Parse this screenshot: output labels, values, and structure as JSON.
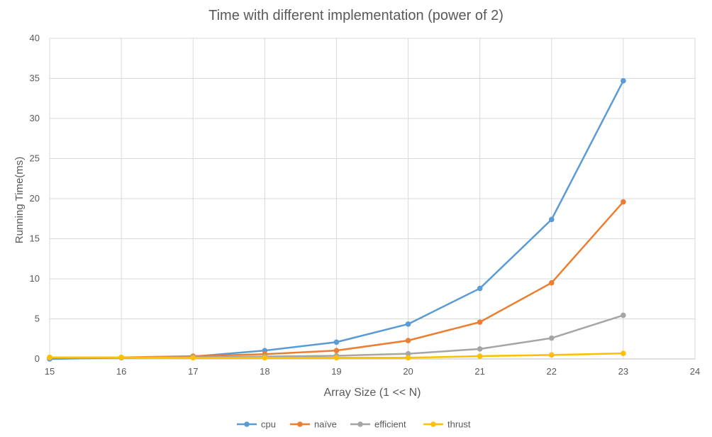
{
  "chart_data": {
    "type": "line",
    "title": "Time with different implementation (power of 2)",
    "xlabel": "Array Size (1 << N)",
    "ylabel": "Running Time(ms)",
    "x": [
      15,
      16,
      17,
      18,
      19,
      20,
      21,
      22,
      23
    ],
    "xlim": [
      15,
      24
    ],
    "xticks": [
      15,
      16,
      17,
      18,
      19,
      20,
      21,
      22,
      23,
      24
    ],
    "ylim": [
      0,
      40
    ],
    "yticks": [
      0,
      5,
      10,
      15,
      20,
      25,
      30,
      35,
      40
    ],
    "grid": true,
    "legend_position": "bottom",
    "series": [
      {
        "name": "cpu",
        "color": "#5b9bd5",
        "values": [
          0.0,
          0.15,
          0.3,
          1.05,
          2.1,
          4.35,
          8.8,
          17.4,
          34.7
        ]
      },
      {
        "name": "naïve",
        "color": "#ed7d31",
        "values": [
          0.2,
          0.2,
          0.35,
          0.6,
          1.05,
          2.3,
          4.6,
          9.5,
          19.6
        ]
      },
      {
        "name": "efficient",
        "color": "#a5a5a5",
        "values": [
          0.15,
          0.15,
          0.2,
          0.3,
          0.4,
          0.65,
          1.25,
          2.6,
          5.45
        ]
      },
      {
        "name": "thrust",
        "color": "#ffc000",
        "values": [
          0.2,
          0.2,
          0.15,
          0.15,
          0.15,
          0.15,
          0.35,
          0.5,
          0.7
        ]
      }
    ]
  }
}
